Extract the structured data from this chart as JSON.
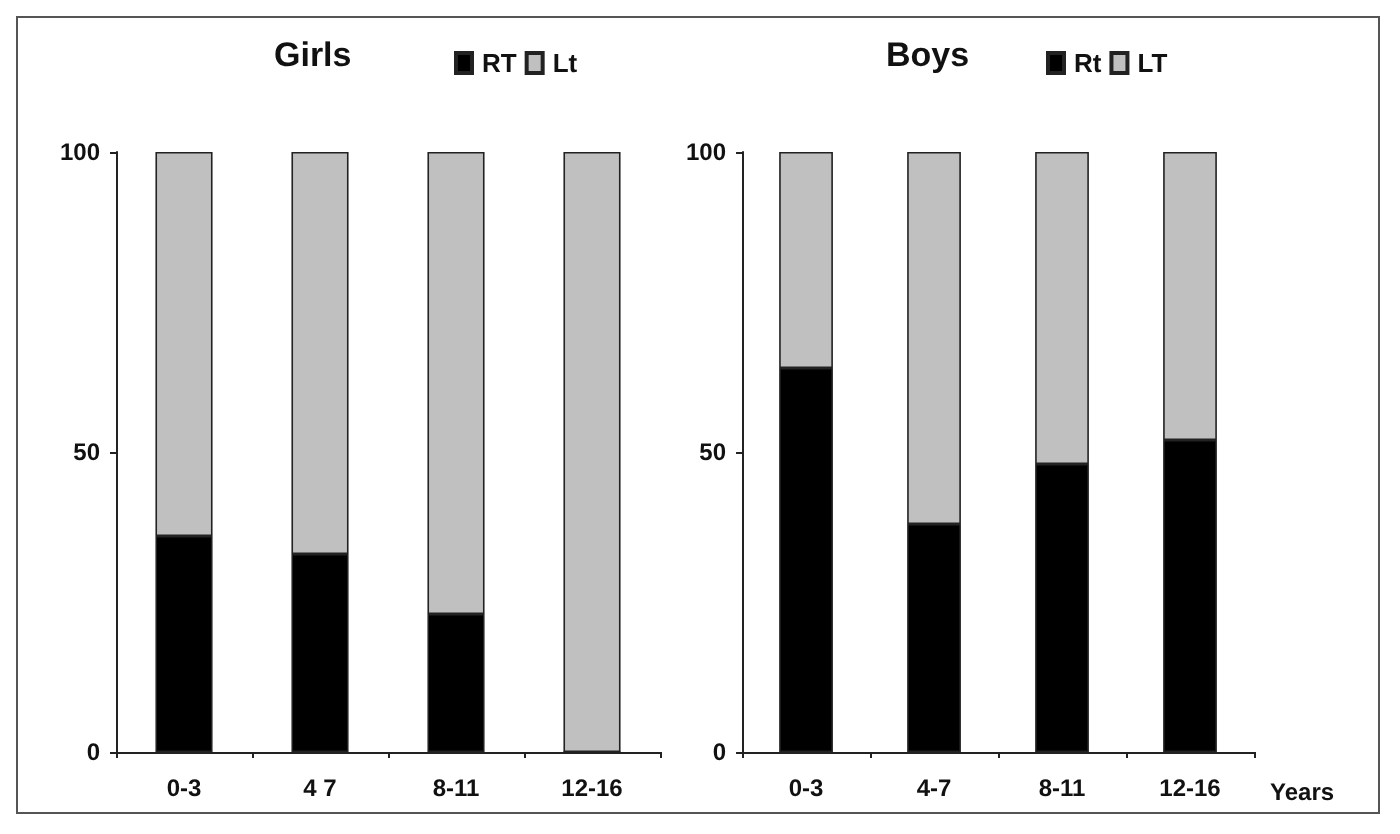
{
  "chart_data": [
    {
      "type": "bar",
      "title": "Girls",
      "categories": [
        "0-3",
        "4 7",
        "8-11",
        "12-16"
      ],
      "stacked": true,
      "series": [
        {
          "name": "RT",
          "color": "#000000",
          "values": [
            36,
            33,
            23,
            0
          ]
        },
        {
          "name": "Lt",
          "color": "#c0c0c0",
          "values": [
            64,
            67,
            77,
            100
          ]
        }
      ],
      "ylim": [
        0,
        100
      ],
      "yticks": [
        0,
        50,
        100
      ],
      "grid": false,
      "legend": "top right"
    },
    {
      "type": "bar",
      "title": "Boys",
      "xlabel": "Years",
      "categories": [
        "0-3",
        "4-7",
        "8-11",
        "12-16"
      ],
      "stacked": true,
      "series": [
        {
          "name": "Rt",
          "color": "#000000",
          "values": [
            64,
            38,
            48,
            52
          ]
        },
        {
          "name": "LT",
          "color": "#c0c0c0",
          "values": [
            36,
            62,
            52,
            48
          ]
        }
      ],
      "ylim": [
        0,
        100
      ],
      "yticks": [
        0,
        50,
        100
      ],
      "grid": false,
      "legend": "top right"
    }
  ]
}
